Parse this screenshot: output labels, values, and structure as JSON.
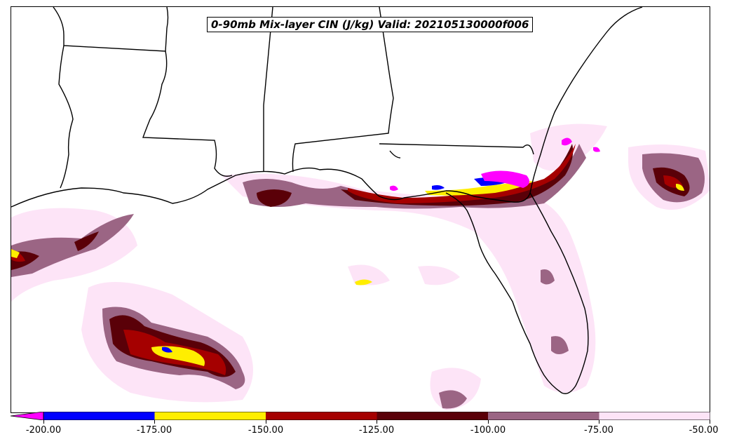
{
  "title": "0-90mb Mix-layer CIN (J/kg) Valid: 202105130000f006",
  "colorbar": {
    "ticks": [
      "-200.00",
      "-175.00",
      "-150.00",
      "-125.00",
      "-100.00",
      "-75.00",
      "-50.00"
    ],
    "segments": [
      {
        "range": "< -200",
        "color": "#ff00ff"
      },
      {
        "range": "-200 to -175",
        "color": "#0000ff"
      },
      {
        "range": "-175 to -150",
        "color": "#ffee00"
      },
      {
        "range": "-150 to -125",
        "color": "#a50000"
      },
      {
        "range": "-125 to -100",
        "color": "#5a0008"
      },
      {
        "range": "-100 to -75",
        "color": "#9b6584"
      },
      {
        "range": "-75 to -50",
        "color": "#fde4f7"
      }
    ]
  }
}
